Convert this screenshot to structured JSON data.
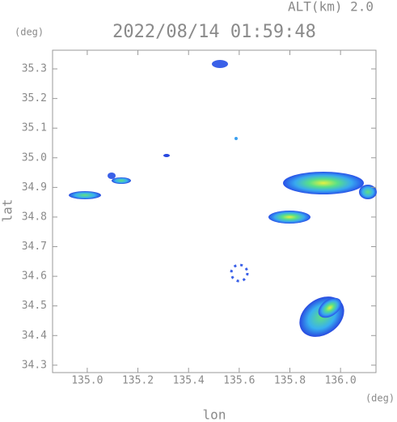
{
  "chart_data": {
    "type": "map",
    "title": "2022/08/14 01:59:48",
    "subtitle": "ALT(km) 2.0",
    "y_unit": "(deg)",
    "x_unit": "(deg)",
    "xlabel": "lon",
    "ylabel": "lat",
    "xlim": [
      134.863,
      136.14
    ],
    "ylim": [
      34.275,
      35.363
    ],
    "xticks": [
      {
        "value": 135,
        "label": "135.0"
      },
      135.2,
      135.4,
      135.6,
      135.8,
      {
        "value": 136,
        "label": "136.0"
      }
    ],
    "yticks": [
      34.3,
      34.4,
      34.5,
      34.6,
      34.7,
      34.8,
      34.9,
      {
        "value": 35,
        "label": "35.0"
      },
      35.1,
      35.2,
      35.3
    ]
  }
}
